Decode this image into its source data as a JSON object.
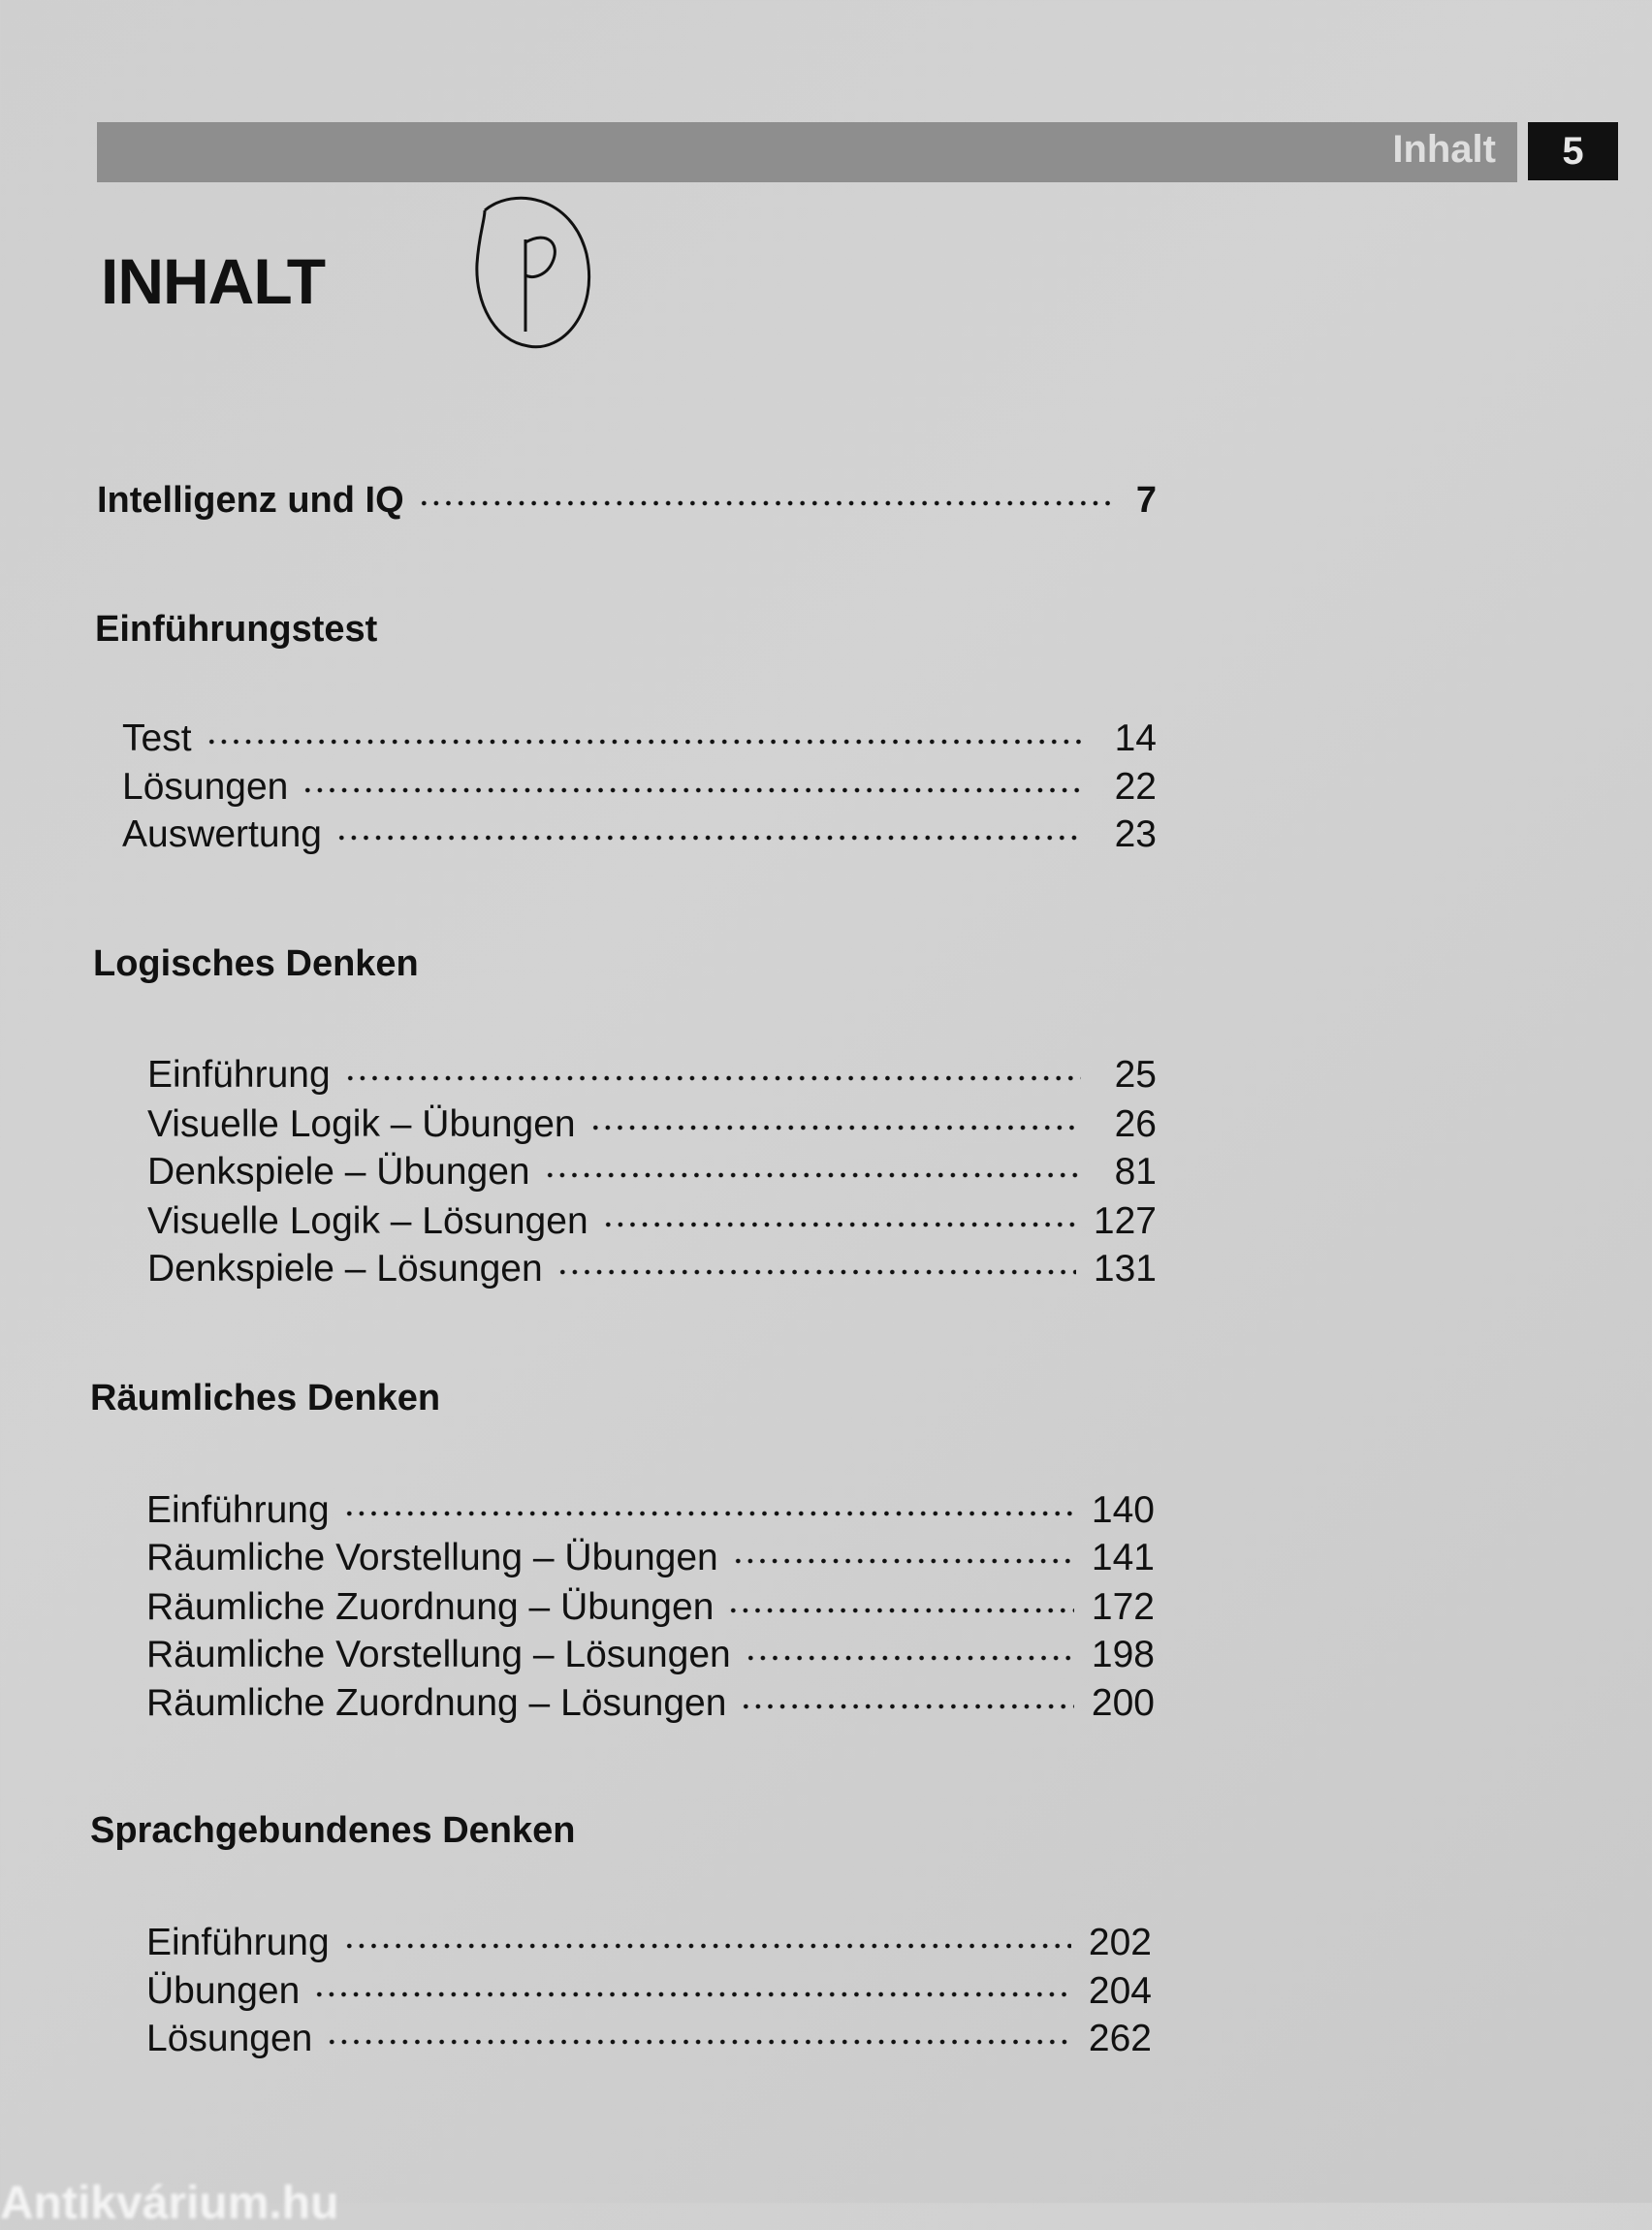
{
  "header": {
    "running_title": "Inhalt",
    "page_number": "5"
  },
  "title": "INHALT",
  "annotation": "P",
  "main_entry": {
    "label": "Intelligenz und IQ",
    "page": "7"
  },
  "sections": [
    {
      "heading": "Einführungstest",
      "items": [
        {
          "label": "Test",
          "page": "14"
        },
        {
          "label": "Lösungen",
          "page": "22"
        },
        {
          "label": "Auswertung",
          "page": "23"
        }
      ]
    },
    {
      "heading": "Logisches Denken",
      "items": [
        {
          "label": "Einführung",
          "page": "25"
        },
        {
          "label": "Visuelle Logik – Übungen",
          "page": "26"
        },
        {
          "label": "Denkspiele – Übungen",
          "page": "81"
        },
        {
          "label": "Visuelle Logik – Lösungen",
          "page": "127"
        },
        {
          "label": "Denkspiele – Lösungen",
          "page": "131"
        }
      ]
    },
    {
      "heading": "Räumliches Denken",
      "items": [
        {
          "label": "Einführung",
          "page": "140"
        },
        {
          "label": "Räumliche Vorstellung – Übungen",
          "page": "141"
        },
        {
          "label": "Räumliche Zuordnung – Übungen",
          "page": "172"
        },
        {
          "label": "Räumliche Vorstellung – Lösungen",
          "page": "198"
        },
        {
          "label": "Räumliche Zuordnung – Lösungen",
          "page": "200"
        }
      ]
    },
    {
      "heading": "Sprachgebundenes Denken",
      "items": [
        {
          "label": "Einführung",
          "page": "202"
        },
        {
          "label": "Übungen",
          "page": "204"
        },
        {
          "label": "Lösungen",
          "page": "262"
        }
      ]
    }
  ],
  "watermark": "Antikvárium.hu"
}
